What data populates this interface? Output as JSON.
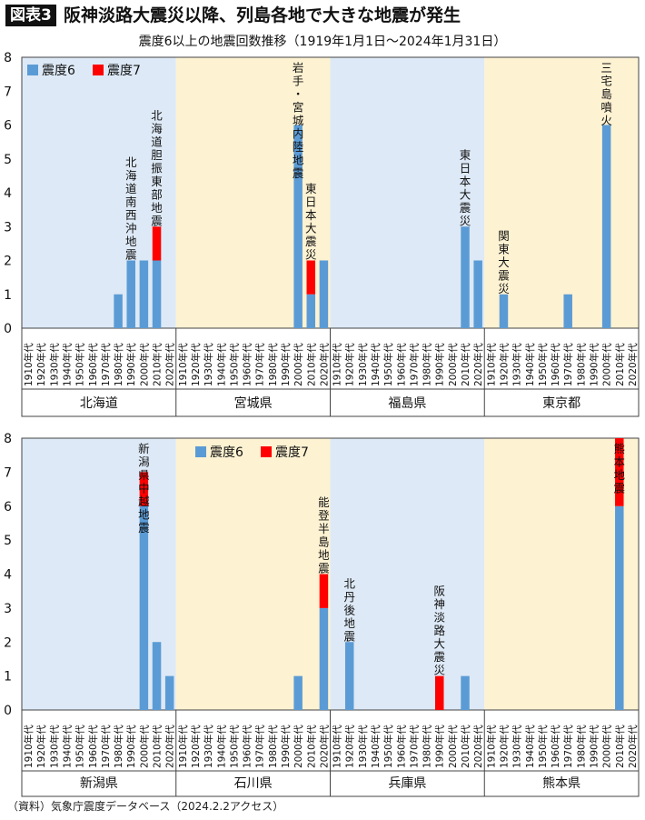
{
  "header": {
    "badge": "図表3",
    "title": "阪神淡路大震災以降、列島各地で大きな地震が発生",
    "subtitle": "震度6以上の地震回数推移（1919年1月1日～2024年1月31日）"
  },
  "source": "（資料）気象庁震度データベース（2024.2.2アクセス）",
  "colors": {
    "shindo6": "#5b9bd5",
    "shindo7": "#ff0000",
    "bg_blue": "#dde9f6",
    "bg_yellow": "#fdf2d2"
  },
  "chart_data": [
    {
      "type": "bar",
      "stacked": true,
      "ylim": [
        0,
        8
      ],
      "yticks": [
        0,
        1,
        2,
        3,
        4,
        5,
        6,
        7,
        8
      ],
      "legend": {
        "placement": "top-left",
        "entries": [
          "震度6",
          "震度7"
        ]
      },
      "decades": [
        "1910年代",
        "1920年代",
        "1930年代",
        "1940年代",
        "1950年代",
        "1960年代",
        "1970年代",
        "1980年代",
        "1990年代",
        "2000年代",
        "2010年代",
        "2020年代"
      ],
      "regions": [
        {
          "name": "北海道",
          "background": "blue",
          "shindo6": [
            0,
            0,
            0,
            0,
            0,
            0,
            0,
            1,
            2,
            2,
            2,
            0
          ],
          "shindo7": [
            0,
            0,
            0,
            0,
            0,
            0,
            0,
            0,
            0,
            0,
            1,
            0
          ],
          "annotations": [
            {
              "text": "北海道南西沖地震",
              "decade": "1990年代"
            },
            {
              "text": "北海道胆振東部地震",
              "decade": "2010年代"
            }
          ]
        },
        {
          "name": "宮城県",
          "background": "yellow",
          "shindo6": [
            0,
            0,
            0,
            0,
            0,
            0,
            0,
            0,
            0,
            6,
            1,
            2
          ],
          "shindo7": [
            0,
            0,
            0,
            0,
            0,
            0,
            0,
            0,
            0,
            0,
            1,
            0
          ],
          "annotations": [
            {
              "text": "岩手・宮城内陸地震",
              "decade": "2000年代"
            },
            {
              "text": "東日本大震災",
              "decade": "2010年代"
            }
          ]
        },
        {
          "name": "福島県",
          "background": "blue",
          "shindo6": [
            0,
            0,
            0,
            0,
            0,
            0,
            0,
            0,
            0,
            0,
            3,
            2
          ],
          "shindo7": [
            0,
            0,
            0,
            0,
            0,
            0,
            0,
            0,
            0,
            0,
            0,
            0
          ],
          "annotations": [
            {
              "text": "東日本大震災",
              "decade": "2010年代"
            }
          ]
        },
        {
          "name": "東京都",
          "background": "yellow",
          "shindo6": [
            0,
            1,
            0,
            0,
            0,
            0,
            1,
            0,
            0,
            6,
            0,
            0
          ],
          "shindo7": [
            0,
            0,
            0,
            0,
            0,
            0,
            0,
            0,
            0,
            0,
            0,
            0
          ],
          "annotations": [
            {
              "text": "関東大震災",
              "decade": "1920年代"
            },
            {
              "text": "三宅島噴火",
              "decade": "2000年代"
            }
          ]
        }
      ]
    },
    {
      "type": "bar",
      "stacked": true,
      "ylim": [
        0,
        8
      ],
      "yticks": [
        0,
        1,
        2,
        3,
        4,
        5,
        6,
        7,
        8
      ],
      "legend": {
        "placement": "top-center",
        "entries": [
          "震度6",
          "震度7"
        ]
      },
      "decades": [
        "1910年代",
        "1920年代",
        "1930年代",
        "1940年代",
        "1950年代",
        "1960年代",
        "1970年代",
        "1980年代",
        "1990年代",
        "2000年代",
        "2010年代",
        "2020年代"
      ],
      "regions": [
        {
          "name": "新潟県",
          "background": "blue",
          "shindo6": [
            0,
            0,
            0,
            0,
            0,
            0,
            0,
            0,
            0,
            6,
            2,
            1
          ],
          "shindo7": [
            0,
            0,
            0,
            0,
            0,
            0,
            0,
            0,
            0,
            1,
            0,
            0
          ],
          "annotations": [
            {
              "text": "新潟県中越地震",
              "decade": "2000年代"
            }
          ]
        },
        {
          "name": "石川県",
          "background": "yellow",
          "shindo6": [
            0,
            0,
            0,
            0,
            0,
            0,
            0,
            0,
            0,
            1,
            0,
            3
          ],
          "shindo7": [
            0,
            0,
            0,
            0,
            0,
            0,
            0,
            0,
            0,
            0,
            0,
            1
          ],
          "annotations": [
            {
              "text": "能登半島地震",
              "decade": "2020年代"
            }
          ]
        },
        {
          "name": "兵庫県",
          "background": "blue",
          "shindo6": [
            0,
            2,
            0,
            0,
            0,
            0,
            0,
            0,
            0,
            0,
            1,
            0
          ],
          "shindo7": [
            0,
            0,
            0,
            0,
            0,
            0,
            0,
            0,
            1,
            0,
            0,
            0
          ],
          "annotations": [
            {
              "text": "北丹後地震",
              "decade": "1920年代"
            },
            {
              "text": "阪神淡路大震災",
              "decade": "1990年代"
            }
          ]
        },
        {
          "name": "熊本県",
          "background": "yellow",
          "shindo6": [
            0,
            0,
            0,
            0,
            0,
            0,
            0,
            0,
            0,
            0,
            6,
            0
          ],
          "shindo7": [
            0,
            0,
            0,
            0,
            0,
            0,
            0,
            0,
            0,
            0,
            2,
            0
          ],
          "annotations": [
            {
              "text": "熊本地震",
              "decade": "2010年代"
            }
          ]
        }
      ]
    }
  ]
}
